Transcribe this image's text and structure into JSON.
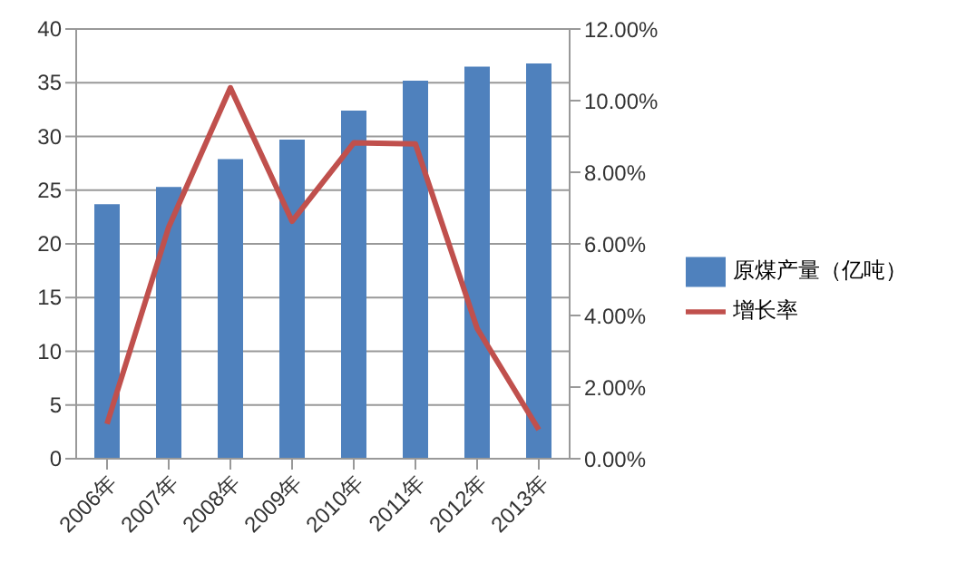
{
  "chart_data": {
    "type": "bar",
    "categories": [
      "2006年",
      "2007年",
      "2008年",
      "2009年",
      "2010年",
      "2011年",
      "2012年",
      "2013年"
    ],
    "series": [
      {
        "name": "原煤产量（亿吨）",
        "color": "#4f81bd",
        "values": [
          23.7,
          25.3,
          27.9,
          29.7,
          32.4,
          35.2,
          36.5,
          36.8
        ]
      },
      {
        "name": "增长率",
        "type": "line",
        "axis": "y2",
        "color": "#c0504d",
        "values": [
          0.97,
          6.47,
          10.36,
          6.63,
          8.82,
          8.79,
          3.64,
          0.81
        ]
      }
    ],
    "ylim": [
      0,
      40
    ],
    "yticks": [
      0,
      5,
      10,
      15,
      20,
      25,
      30,
      35,
      40
    ],
    "y2lim": [
      0,
      12
    ],
    "y2ticks": [
      {
        "value": 0,
        "label": "0.00%"
      },
      {
        "value": 2,
        "label": "2.00%"
      },
      {
        "value": 4,
        "label": "4.00%"
      },
      {
        "value": 6,
        "label": "6.00%"
      },
      {
        "value": 8,
        "label": "8.00%"
      },
      {
        "value": 10,
        "label": "10.00%"
      },
      {
        "value": 12,
        "label": "12.00%"
      }
    ],
    "grid": "y",
    "legend": "right",
    "marker": "none",
    "line_style": "solid"
  }
}
